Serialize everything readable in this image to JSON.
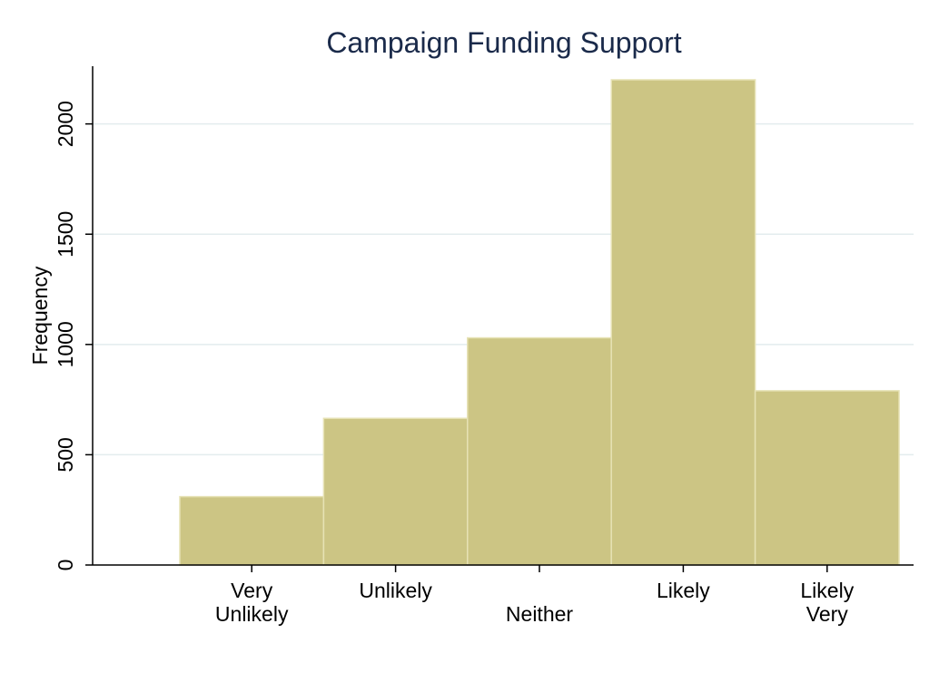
{
  "chart_data": {
    "type": "bar",
    "title": "Campaign Funding Support",
    "xlabel": "",
    "ylabel": "Frequency",
    "categories": [
      [
        "Very",
        "Unlikely"
      ],
      [
        "Unlikely"
      ],
      [
        "",
        "Neither"
      ],
      [
        "Likely"
      ],
      [
        "Likely",
        "Very"
      ]
    ],
    "values": [
      310,
      665,
      1030,
      2200,
      790
    ],
    "ylim": [
      0,
      2250
    ],
    "yticks": [
      0,
      500,
      1000,
      1500,
      2000
    ],
    "grid": true,
    "colors": {
      "bar": "#ccc584",
      "bar_edge": "#e6e2b4",
      "grid": "#e3ecee",
      "axis": "#000000",
      "title": "#1a2a4a",
      "outer_bg": "#eaf2f3",
      "plot_bg": "#ffffff"
    }
  }
}
